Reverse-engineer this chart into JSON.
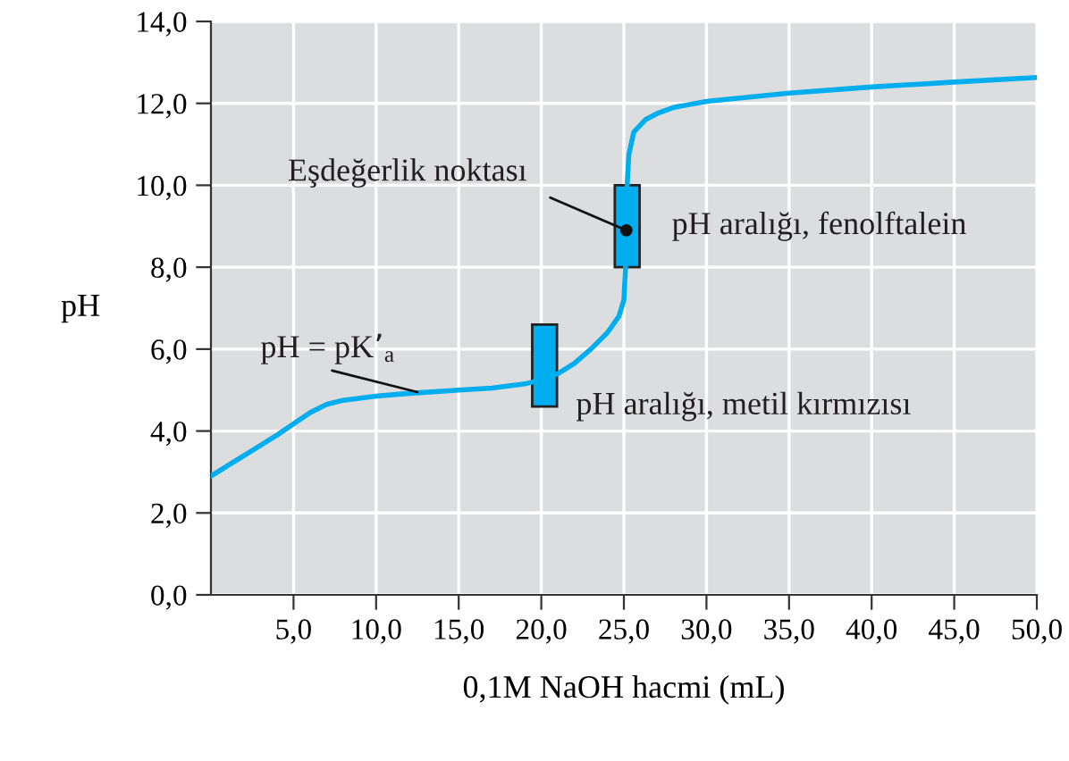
{
  "chart_data": {
    "type": "line",
    "xlabel": "0,1M NaOH hacmi (mL)",
    "ylabel": "pH",
    "x": [
      0,
      2,
      4,
      6,
      7,
      8,
      10,
      12,
      15,
      17,
      19,
      20,
      21,
      22,
      23,
      24,
      24.7,
      25,
      25.1,
      25.15,
      25.2,
      25.3,
      25.6,
      26.3,
      27,
      28,
      30,
      35,
      40,
      45,
      50
    ],
    "series": [
      {
        "color": "#00aeef",
        "values": [
          2.9,
          3.4,
          3.9,
          4.45,
          4.65,
          4.75,
          4.85,
          4.92,
          5.0,
          5.05,
          5.15,
          5.25,
          5.4,
          5.65,
          6.0,
          6.4,
          6.8,
          7.2,
          8.0,
          9.0,
          10.0,
          10.75,
          11.3,
          11.6,
          11.75,
          11.9,
          12.05,
          12.25,
          12.4,
          12.52,
          12.63
        ]
      },
      {
        "type": "bar",
        "color": "#00aeef",
        "x": [
          20.2,
          25.2
        ],
        "base": [
          4.6,
          8.0
        ],
        "values": [
          2.0,
          2.0
        ]
      }
    ],
    "xlim": [
      0,
      50
    ],
    "ylim": [
      0,
      14
    ],
    "xticks": [
      {
        "value": 5,
        "label": "5,0"
      },
      {
        "value": 10,
        "label": "10,0"
      },
      {
        "value": 15,
        "label": "15,0"
      },
      {
        "value": 20,
        "label": "20,0"
      },
      {
        "value": 25,
        "label": "25,0"
      },
      {
        "value": 30,
        "label": "30,0"
      },
      {
        "value": 35,
        "label": "35,0"
      },
      {
        "value": 40,
        "label": "40,0"
      },
      {
        "value": 45,
        "label": "45,0"
      },
      {
        "value": 50,
        "label": "50,0"
      }
    ],
    "yticks": [
      {
        "value": 0,
        "label": "0,0"
      },
      {
        "value": 2,
        "label": "2,0"
      },
      {
        "value": 4,
        "label": "4,0"
      },
      {
        "value": 6,
        "label": "6,0"
      },
      {
        "value": 8,
        "label": "8,0"
      },
      {
        "value": 10,
        "label": "10,0"
      },
      {
        "value": 12,
        "label": "12,0"
      },
      {
        "value": 14,
        "label": "14,0"
      }
    ],
    "grid": true,
    "annotations": [
      {
        "text": "Eşdeğerlik noktası",
        "x": 25.15,
        "y": 8.9
      },
      {
        "text": "pH = pK’$_{a}$",
        "x": 12.5,
        "y": 4.95
      },
      {
        "text": "pH aralığı, metil kırmızısı",
        "x": 20.2,
        "y": 4.6
      },
      {
        "text": "pH aralığı, fenolftalein",
        "x": 25.2,
        "y": 9.0
      }
    ]
  }
}
